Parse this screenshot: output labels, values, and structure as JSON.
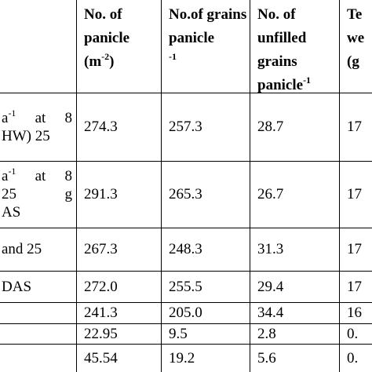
{
  "table": {
    "header": [
      [],
      [
        "No.   of",
        "panicle",
        [
          "(m",
          {
            "sup": "-2"
          },
          ")"
        ]
      ],
      [
        "No.of grains",
        "panicle",
        [
          {
            "sup": "-1"
          }
        ]
      ],
      [
        "No.     of",
        "unfilled",
        "grains",
        [
          "panicle",
          {
            "sup": "-1"
          }
        ]
      ],
      [
        "Te",
        "we",
        "(g"
      ]
    ],
    "rows": [
      [
        [
          [
            "a",
            {
              "sup": "-1"
            },
            "  at 8"
          ],
          "HW)  25"
        ],
        "274.3",
        "257.3",
        "28.7",
        "17"
      ],
      [
        [
          [
            "a",
            {
              "sup": "-1"
            },
            "  at 8"
          ],
          "25 g",
          "AS"
        ],
        "291.3",
        "265.3",
        "26.7",
        "17"
      ],
      [
        [
          "and 25"
        ],
        "267.3",
        "248.3",
        "31.3",
        "17"
      ],
      [
        [
          "DAS"
        ],
        "272.0",
        "255.5",
        "29.4",
        "17"
      ],
      [
        [],
        "241.3",
        "205.0",
        "34.4",
        "16"
      ],
      [
        [],
        "22.95",
        "9.5",
        "2.8",
        "0."
      ],
      [
        [],
        "45.54",
        "19.2",
        "5.6",
        "0."
      ]
    ]
  }
}
